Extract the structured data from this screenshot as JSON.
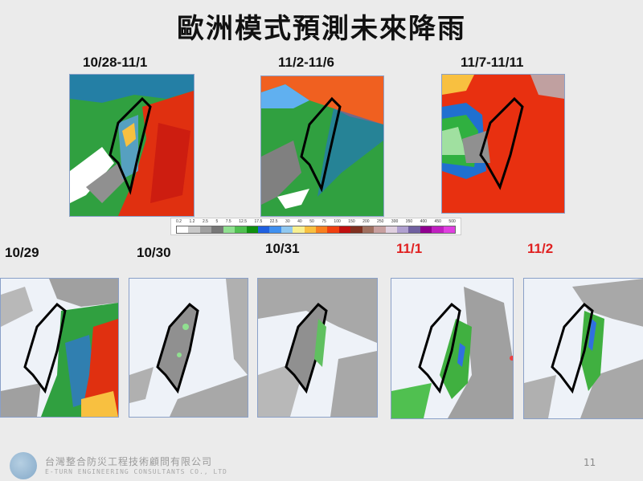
{
  "slide": {
    "title": "歐洲模式預測未來降雨",
    "page_number": "11"
  },
  "period_maps": [
    {
      "label": "10/28-11/1",
      "label_color": "#111111"
    },
    {
      "label": "11/2-11/6",
      "label_color": "#111111"
    },
    {
      "label": "11/7-11/11",
      "label_color": "#111111"
    }
  ],
  "daily_maps": [
    {
      "label": "10/29",
      "label_color": "#111111"
    },
    {
      "label": "10/30",
      "label_color": "#111111"
    },
    {
      "label": "10/31",
      "label_color": "#111111"
    },
    {
      "label": "11/1",
      "label_color": "#e02020"
    },
    {
      "label": "11/2",
      "label_color": "#e02020"
    }
  ],
  "colorbar": {
    "ticks": [
      "0.2",
      "1.2",
      "2.5",
      "5",
      "7.5",
      "12.5",
      "17.5",
      "22.5",
      "30",
      "40",
      "50",
      "75",
      "100",
      "150",
      "200",
      "250",
      "300",
      "350",
      "400",
      "450",
      "500"
    ],
    "colors": [
      "#ffffff",
      "#c8c8c8",
      "#a0a0a0",
      "#787878",
      "#90e090",
      "#50c050",
      "#109010",
      "#2060e0",
      "#4090f0",
      "#90c8f0",
      "#f8f090",
      "#f8c040",
      "#f88020",
      "#f04010",
      "#c01010",
      "#803020",
      "#a07060",
      "#c8a0a0",
      "#e0d0e0",
      "#b0a0d0",
      "#7060a0",
      "#900090",
      "#c020c0",
      "#e040e0"
    ]
  },
  "footer": {
    "company_zh": "台灣整合防災工程技術顧問有限公司",
    "company_en": "E-TURN ENGINEERING CONSULTANTS CO., LTD"
  }
}
